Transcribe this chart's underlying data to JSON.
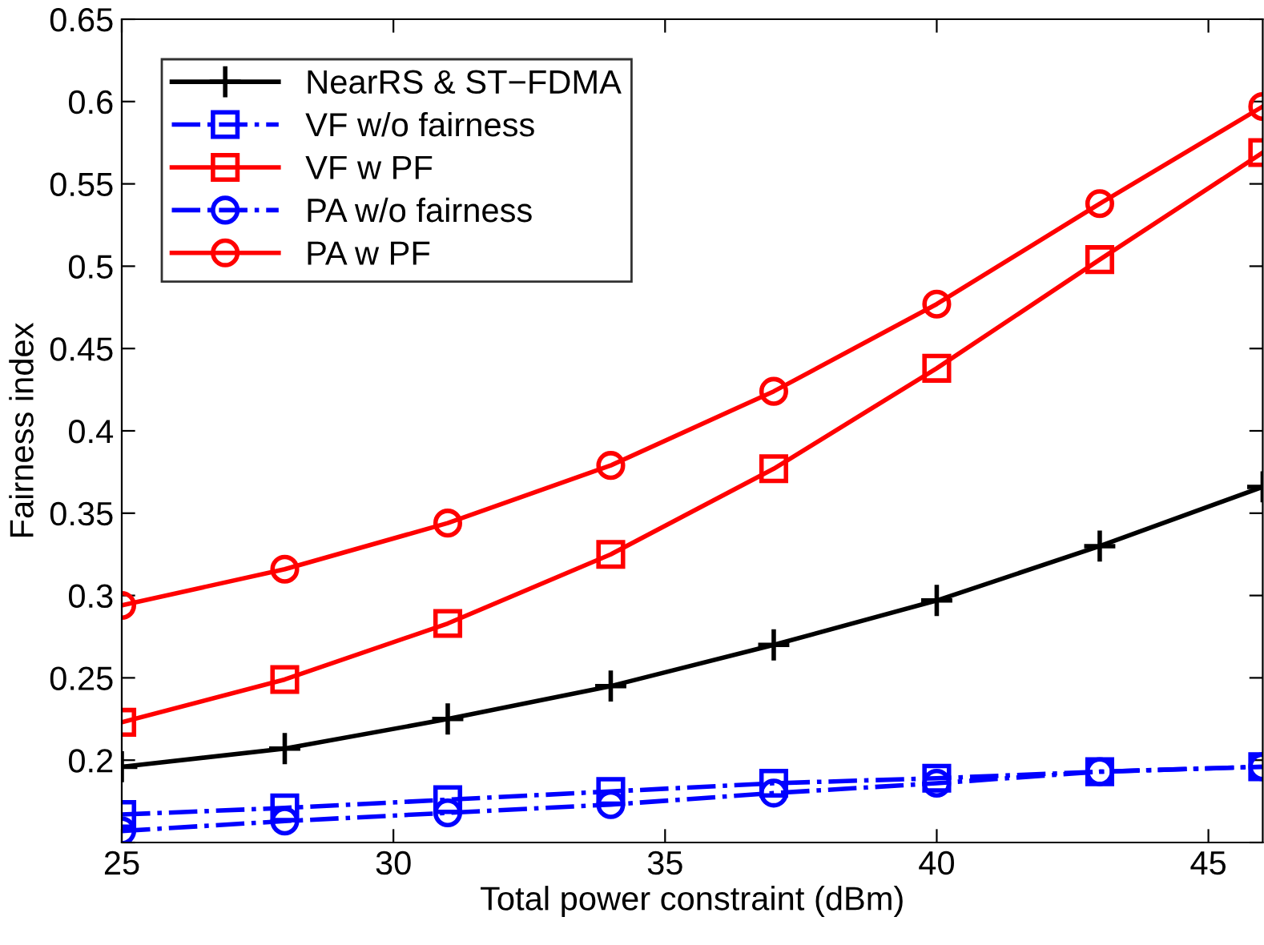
{
  "chart_data": {
    "type": "line",
    "xlabel": "Total power constraint (dBm)",
    "ylabel": "Fairness index",
    "x": [
      25,
      28,
      31,
      34,
      37,
      40,
      43,
      46
    ],
    "series": [
      {
        "name": "NearRS & ST−FDMA",
        "color": "#000000",
        "marker": "cross",
        "line_style": "solid",
        "values": [
          0.196,
          0.207,
          0.225,
          0.245,
          0.27,
          0.297,
          0.33,
          0.366
        ]
      },
      {
        "name": "VF w/o fairness",
        "color": "#0000ff",
        "marker": "square",
        "line_style": "dashdot",
        "values": [
          0.167,
          0.171,
          0.176,
          0.181,
          0.186,
          0.189,
          0.193,
          0.196
        ]
      },
      {
        "name": "VF w PF",
        "color": "#ff0000",
        "marker": "square",
        "line_style": "solid",
        "values": [
          0.223,
          0.249,
          0.283,
          0.325,
          0.377,
          0.438,
          0.504,
          0.569
        ]
      },
      {
        "name": "PA w/o fairness",
        "color": "#0000ff",
        "marker": "circle",
        "line_style": "dashdot",
        "values": [
          0.157,
          0.163,
          0.168,
          0.173,
          0.18,
          0.186,
          0.193,
          0.196
        ]
      },
      {
        "name": "PA w PF",
        "color": "#ff0000",
        "marker": "circle",
        "line_style": "solid",
        "values": [
          0.294,
          0.316,
          0.344,
          0.379,
          0.424,
          0.477,
          0.538,
          0.597
        ]
      }
    ],
    "xlim": [
      25,
      46
    ],
    "xticks": [
      25,
      30,
      35,
      40,
      45
    ],
    "ylim": [
      0.15,
      0.65
    ],
    "yticks": [
      {
        "value": 0.15,
        "label": null
      },
      0.2,
      0.25,
      0.3,
      0.35,
      0.4,
      0.45,
      0.5,
      0.55,
      0.6,
      0.65
    ],
    "grid": false,
    "legend": "top left"
  }
}
